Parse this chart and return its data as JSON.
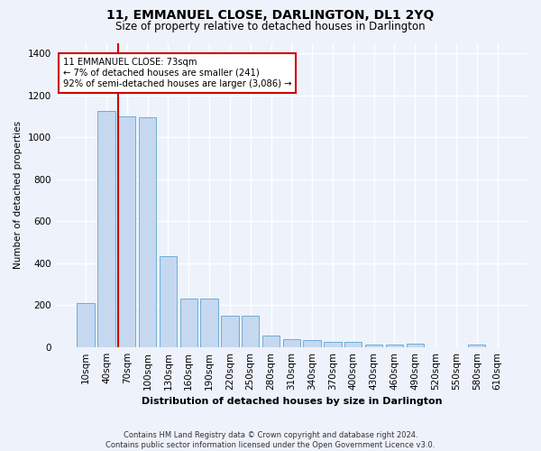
{
  "title": "11, EMMANUEL CLOSE, DARLINGTON, DL1 2YQ",
  "subtitle": "Size of property relative to detached houses in Darlington",
  "xlabel": "Distribution of detached houses by size in Darlington",
  "ylabel": "Number of detached properties",
  "footer_line1": "Contains HM Land Registry data © Crown copyright and database right 2024.",
  "footer_line2": "Contains public sector information licensed under the Open Government Licence v3.0.",
  "bar_labels": [
    "10sqm",
    "40sqm",
    "70sqm",
    "100sqm",
    "130sqm",
    "160sqm",
    "190sqm",
    "220sqm",
    "250sqm",
    "280sqm",
    "310sqm",
    "340sqm",
    "370sqm",
    "400sqm",
    "430sqm",
    "460sqm",
    "490sqm",
    "520sqm",
    "550sqm",
    "580sqm",
    "610sqm"
  ],
  "bar_values": [
    210,
    1125,
    1100,
    1095,
    435,
    230,
    230,
    148,
    148,
    55,
    38,
    35,
    25,
    25,
    12,
    12,
    18,
    0,
    0,
    12,
    0
  ],
  "bar_color": "#c5d8f0",
  "bar_edgecolor": "#6baed6",
  "ylim": [
    0,
    1450
  ],
  "yticks": [
    0,
    200,
    400,
    600,
    800,
    1000,
    1200,
    1400
  ],
  "annotation_text_line1": "11 EMMANUEL CLOSE: 73sqm",
  "annotation_text_line2": "← 7% of detached houses are smaller (241)",
  "annotation_text_line3": "92% of semi-detached houses are larger (3,086) →",
  "annotation_box_color": "#ffffff",
  "annotation_box_edgecolor": "#cc0000",
  "vline_color": "#cc0000",
  "background_color": "#eef2fb",
  "grid_color": "#ffffff"
}
